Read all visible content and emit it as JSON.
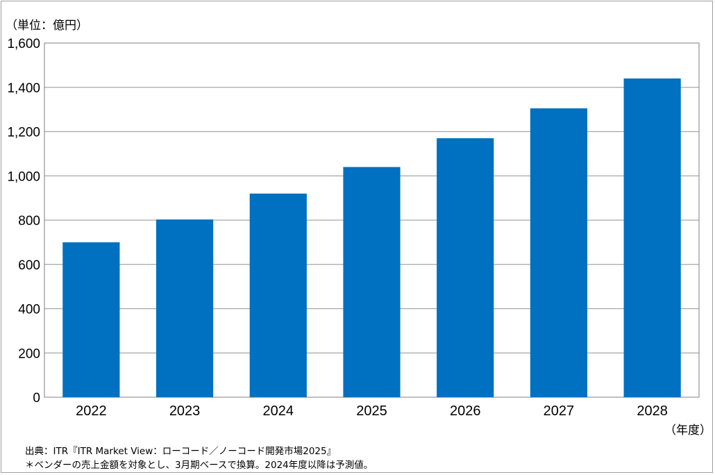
{
  "unit_label": "（単位：億円）",
  "year_unit_label": "（年度）",
  "source": "出典：ITR『ITR Market View：ローコード／ノーコード開発市場2025』",
  "note": "＊ベンダーの売上金額を対象とし、3月期ベースで換算。2024年度以降は予測値。",
  "colors": {
    "bar": "#0070c0",
    "grid": "#a6a6a6",
    "frame": "#9e9e9e"
  },
  "chart_data": {
    "type": "bar",
    "categories": [
      "2022",
      "2023",
      "2024",
      "2025",
      "2026",
      "2027",
      "2028"
    ],
    "values": [
      700,
      803,
      920,
      1040,
      1170,
      1305,
      1440
    ],
    "ylim": [
      0,
      1600
    ],
    "yticks": [
      "0",
      "200",
      "400",
      "600",
      "800",
      "1,000",
      "1,200",
      "1,400",
      "1,600"
    ],
    "ytick_values": [
      0,
      200,
      400,
      600,
      800,
      1000,
      1200,
      1400,
      1600
    ],
    "grid": true,
    "legend": "none"
  }
}
